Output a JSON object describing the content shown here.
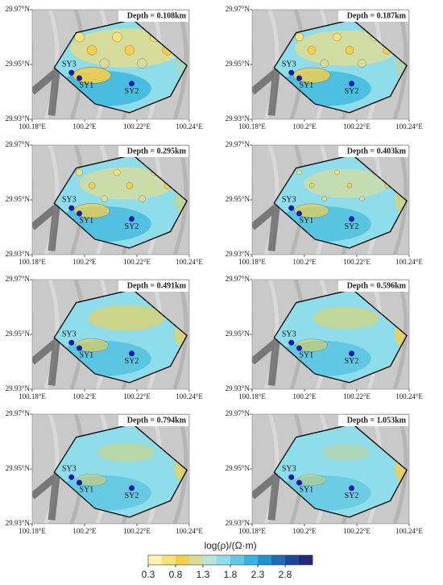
{
  "panels": [
    {
      "depth": "Depth = 0.108km"
    },
    {
      "depth": "Depth = 0.187km"
    },
    {
      "depth": "Depth = 0.295km"
    },
    {
      "depth": "Depth = 0.403km"
    },
    {
      "depth": "Depth = 0.491km"
    },
    {
      "depth": "Depth = 0.596km"
    },
    {
      "depth": "Depth = 0.794km"
    },
    {
      "depth": "Depth = 1.053km"
    }
  ],
  "xlim": [
    100.18,
    100.24
  ],
  "ylim": [
    29.93,
    29.97
  ],
  "xticks": [
    {
      "value": 100.18,
      "label": "100.18°E"
    },
    {
      "value": 100.2,
      "label": "100.2°E"
    },
    {
      "value": 100.22,
      "label": "100.22°E"
    },
    {
      "value": 100.24,
      "label": "100.24°E"
    }
  ],
  "yticks": [
    {
      "value": 29.93,
      "label": "29.93°N"
    },
    {
      "value": 29.95,
      "label": "29.95°N"
    },
    {
      "value": 29.97,
      "label": "29.97°N"
    }
  ],
  "stations": [
    {
      "name": "SY1",
      "lon": 100.198,
      "lat": 29.945
    },
    {
      "name": "SY2",
      "lon": 100.218,
      "lat": 29.943
    },
    {
      "name": "SY3",
      "lon": 100.195,
      "lat": 29.947
    }
  ],
  "station_color": "#1a1aa8",
  "colorbar": {
    "title": "log(ρ)/(Ω·m)",
    "lim": [
      0.3,
      3.3
    ],
    "ticks": [
      0.3,
      0.8,
      1.3,
      1.8,
      2.3,
      2.8
    ],
    "colors": [
      "#fbf3b0",
      "#f7e27a",
      "#f3cf4a",
      "#d8dc9a",
      "#b8e6df",
      "#8fdcea",
      "#5fcbe6",
      "#36b5dc",
      "#1f93cc",
      "#1c6cb6",
      "#1f4698",
      "#232a78"
    ]
  }
}
